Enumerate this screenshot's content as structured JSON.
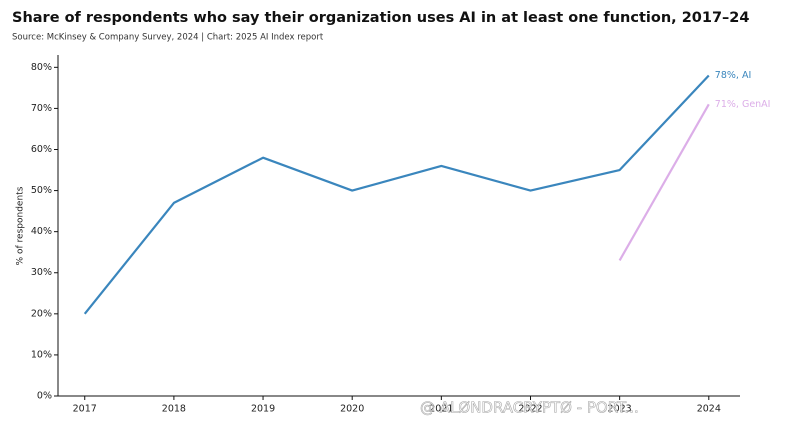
{
  "chart_data": {
    "type": "line",
    "title": "Share of respondents who say their organization uses AI in at least one function, 2017–24",
    "subtitle": "Source: McKinsey & Company Survey, 2024 | Chart: 2025 AI Index report",
    "y_label": "% of respondents",
    "x": [
      2017,
      2018,
      2019,
      2020,
      2021,
      2022,
      2023,
      2024
    ],
    "series": [
      {
        "name": "AI",
        "color": "#3a86bd",
        "values": [
          20,
          47,
          58,
          50,
          56,
          50,
          55,
          78
        ],
        "end_label": "78%, AI"
      },
      {
        "name": "GenAI",
        "color": "#dcaee8",
        "values": [
          null,
          null,
          null,
          null,
          null,
          null,
          33,
          71
        ],
        "end_label": "71%, GenAI"
      }
    ],
    "xlim": [
      2016.7,
      2024.35
    ],
    "xticks": [
      2017,
      2018,
      2019,
      2020,
      2021,
      2022,
      2023,
      2024
    ],
    "ylim": [
      0,
      83
    ],
    "yticks": [
      {
        "value": 0,
        "label": "0%"
      },
      {
        "value": 10,
        "label": "10%"
      },
      {
        "value": 20,
        "label": "20%"
      },
      {
        "value": 30,
        "label": "30%"
      },
      {
        "value": 40,
        "label": "40%"
      },
      {
        "value": 50,
        "label": "50%"
      },
      {
        "value": 60,
        "label": "60%"
      },
      {
        "value": 70,
        "label": "70%"
      },
      {
        "value": 80,
        "label": "80%"
      }
    ],
    "grid": false,
    "watermark": "@ ALØNDRACRYPTØ - PORT..."
  }
}
